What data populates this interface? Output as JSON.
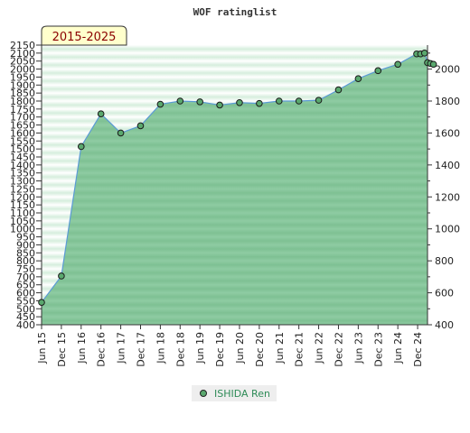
{
  "chart_data": {
    "type": "area",
    "title": "WOF ratinglist",
    "range_label": "2015-2025",
    "left_axis": {
      "min": 400,
      "max": 2150,
      "step": 50,
      "ticks": [
        "2150",
        "2100",
        "2050",
        "2000",
        "1950",
        "1900",
        "1850",
        "1800",
        "1750",
        "1700",
        "1650",
        "1600",
        "1550",
        "1500",
        "1450",
        "1400",
        "1350",
        "1300",
        "1250",
        "1200",
        "1150",
        "1100",
        "1050",
        "1000",
        "950",
        "900",
        "850",
        "800",
        "750",
        "700",
        "650",
        "600",
        "550",
        "500",
        "450",
        "400"
      ]
    },
    "right_axis": {
      "min": 400,
      "max": 2150,
      "ticks": [
        "2000",
        "1800",
        "1600",
        "1400",
        "1200",
        "1000",
        "800",
        "600",
        "400"
      ]
    },
    "x_labels": [
      "Jun 15",
      "Dec 15",
      "Jun 16",
      "Dec 16",
      "Jun 17",
      "Dec 17",
      "Jun 18",
      "Dec 18",
      "Jun 19",
      "Dec 19",
      "Jun 20",
      "Dec 20",
      "Jun 21",
      "Dec 21",
      "Jun 22",
      "Dec 22",
      "Jun 23",
      "Dec 23",
      "Jun 24",
      "Dec 24"
    ],
    "series": [
      {
        "name": "ISHIDA Ren",
        "points": [
          {
            "t": 0,
            "v": 540
          },
          {
            "t": 1,
            "v": 705
          },
          {
            "t": 2,
            "v": 1515
          },
          {
            "t": 3,
            "v": 1720
          },
          {
            "t": 4,
            "v": 1600
          },
          {
            "t": 5,
            "v": 1645
          },
          {
            "t": 6,
            "v": 1780
          },
          {
            "t": 7,
            "v": 1800
          },
          {
            "t": 8,
            "v": 1795
          },
          {
            "t": 9,
            "v": 1775
          },
          {
            "t": 10,
            "v": 1790
          },
          {
            "t": 11,
            "v": 1785
          },
          {
            "t": 12,
            "v": 1800
          },
          {
            "t": 13,
            "v": 1800
          },
          {
            "t": 14,
            "v": 1805
          },
          {
            "t": 15,
            "v": 1870
          },
          {
            "t": 16,
            "v": 1940
          },
          {
            "t": 17,
            "v": 1990
          },
          {
            "t": 18,
            "v": 2030
          },
          {
            "t": 18.95,
            "v": 2095
          },
          {
            "t": 19.15,
            "v": 2095
          },
          {
            "t": 19.35,
            "v": 2100
          },
          {
            "t": 19.5,
            "v": 2040
          },
          {
            "t": 19.65,
            "v": 2035
          },
          {
            "t": 19.8,
            "v": 2030
          }
        ]
      }
    ],
    "fill_color": "#8cc9a0",
    "line_color": "#5b9bd5",
    "marker_color": "#5aa86e",
    "legend_position": "bottom-center"
  }
}
